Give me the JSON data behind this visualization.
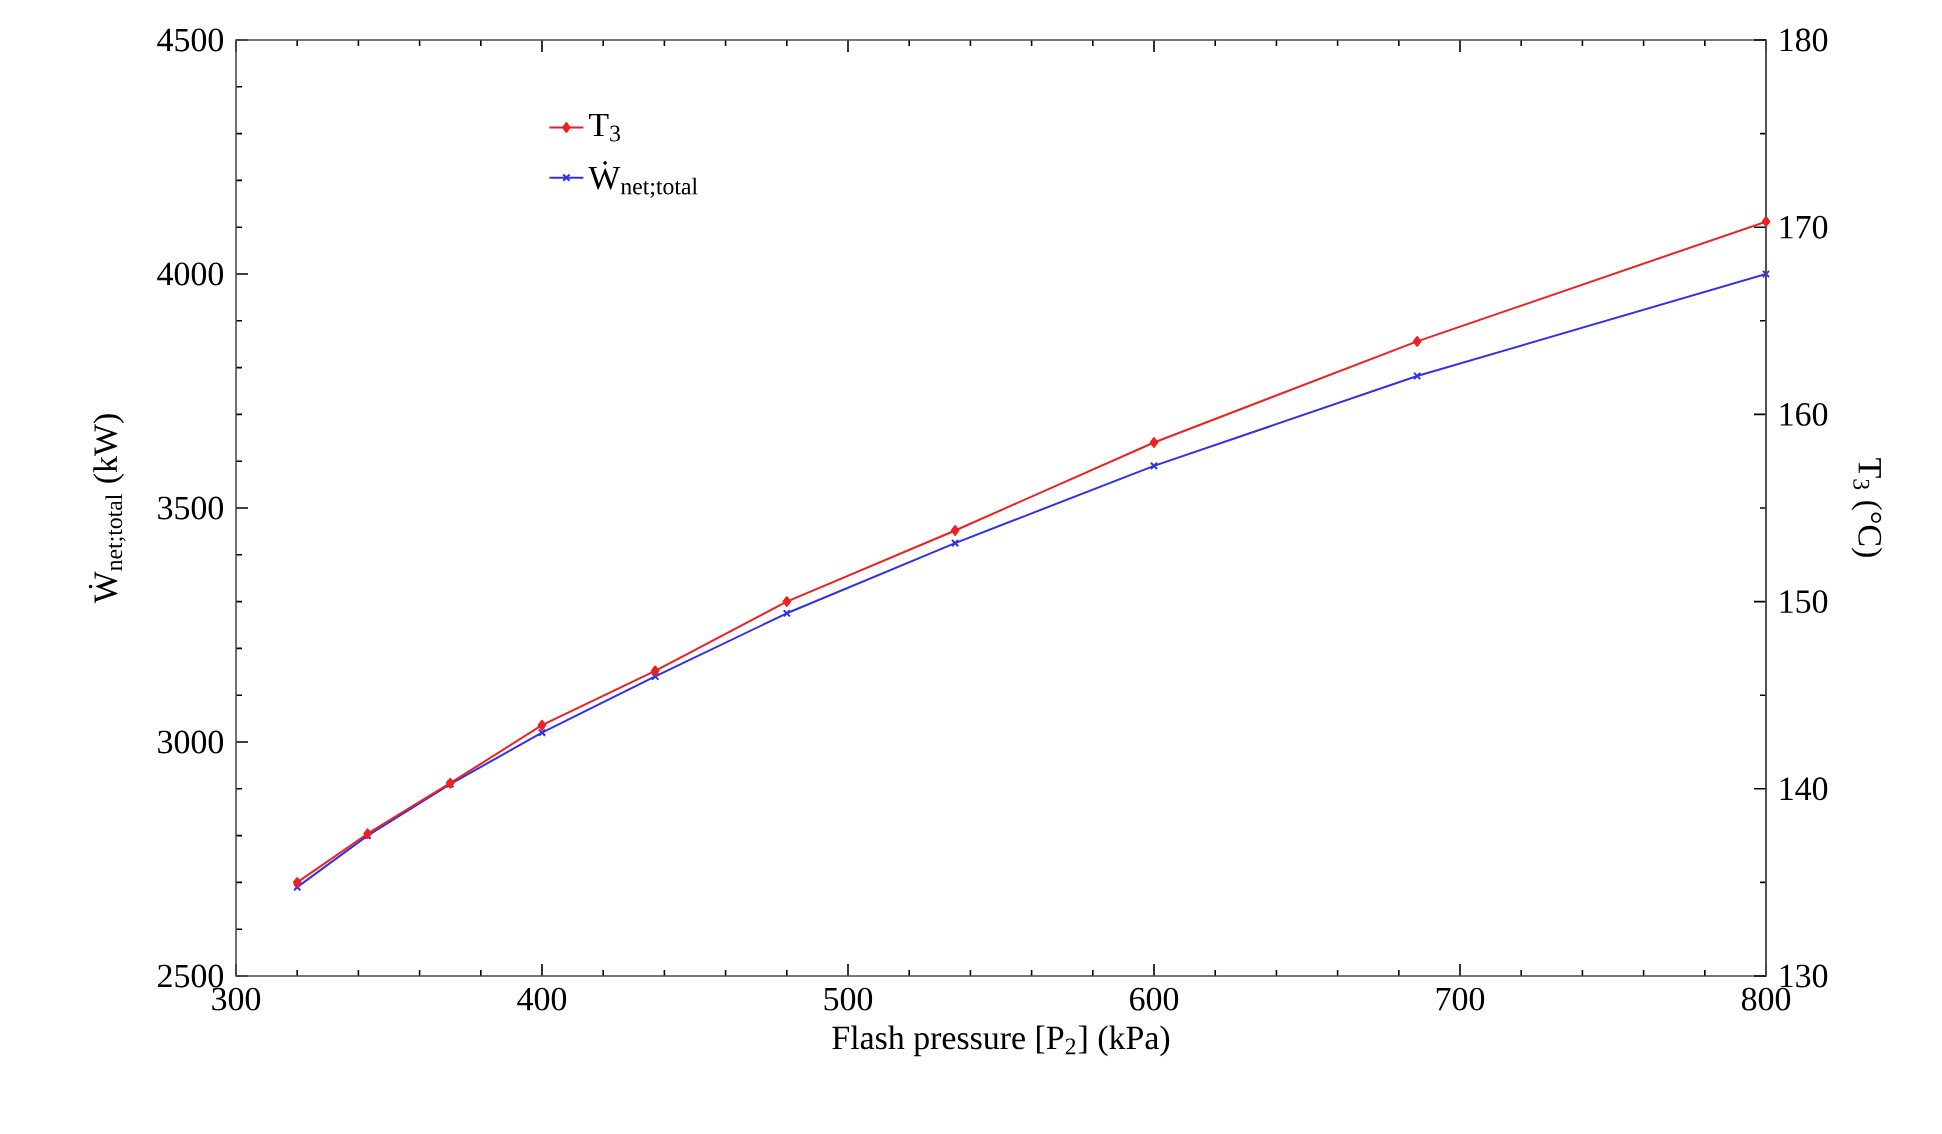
{
  "chart_data": {
    "type": "line",
    "xlabel": "Flash pressure [P$_{2}$] (kPa)",
    "ylabel": "Ẇ$_{net;total}$ (kW)",
    "y2label": "T$_{3}$ (°C)",
    "series": [
      {
        "name": "T$_{3}$",
        "color": "#ee2020",
        "axis": "y2",
        "marker": "diamond",
        "x": [
          320,
          343,
          370,
          400,
          437,
          480,
          535,
          600,
          686,
          800
        ],
        "values": [
          135.0,
          137.6,
          140.3,
          143.4,
          146.3,
          150.0,
          153.8,
          158.5,
          163.9,
          170.3
        ]
      },
      {
        "name": "Ẇ$_{net;total}$",
        "color": "#3030ee",
        "marker": "cross",
        "x": [
          320,
          343,
          370,
          400,
          437,
          480,
          535,
          600,
          686,
          800
        ],
        "values": [
          2690,
          2800,
          2910,
          3020,
          3140,
          3275,
          3425,
          3590,
          3782,
          4000
        ]
      }
    ],
    "xlim": [
      300,
      800
    ],
    "xticks": [
      300,
      400,
      500,
      600,
      700,
      800
    ],
    "ylim": [
      2500,
      4500
    ],
    "yticks": [
      2500,
      3000,
      3500,
      4000,
      4500
    ],
    "y2lim": [
      130,
      180
    ],
    "y2ticks": [
      130,
      140,
      150,
      160,
      170,
      180
    ],
    "legend": "top left",
    "line_style": "solid"
  }
}
